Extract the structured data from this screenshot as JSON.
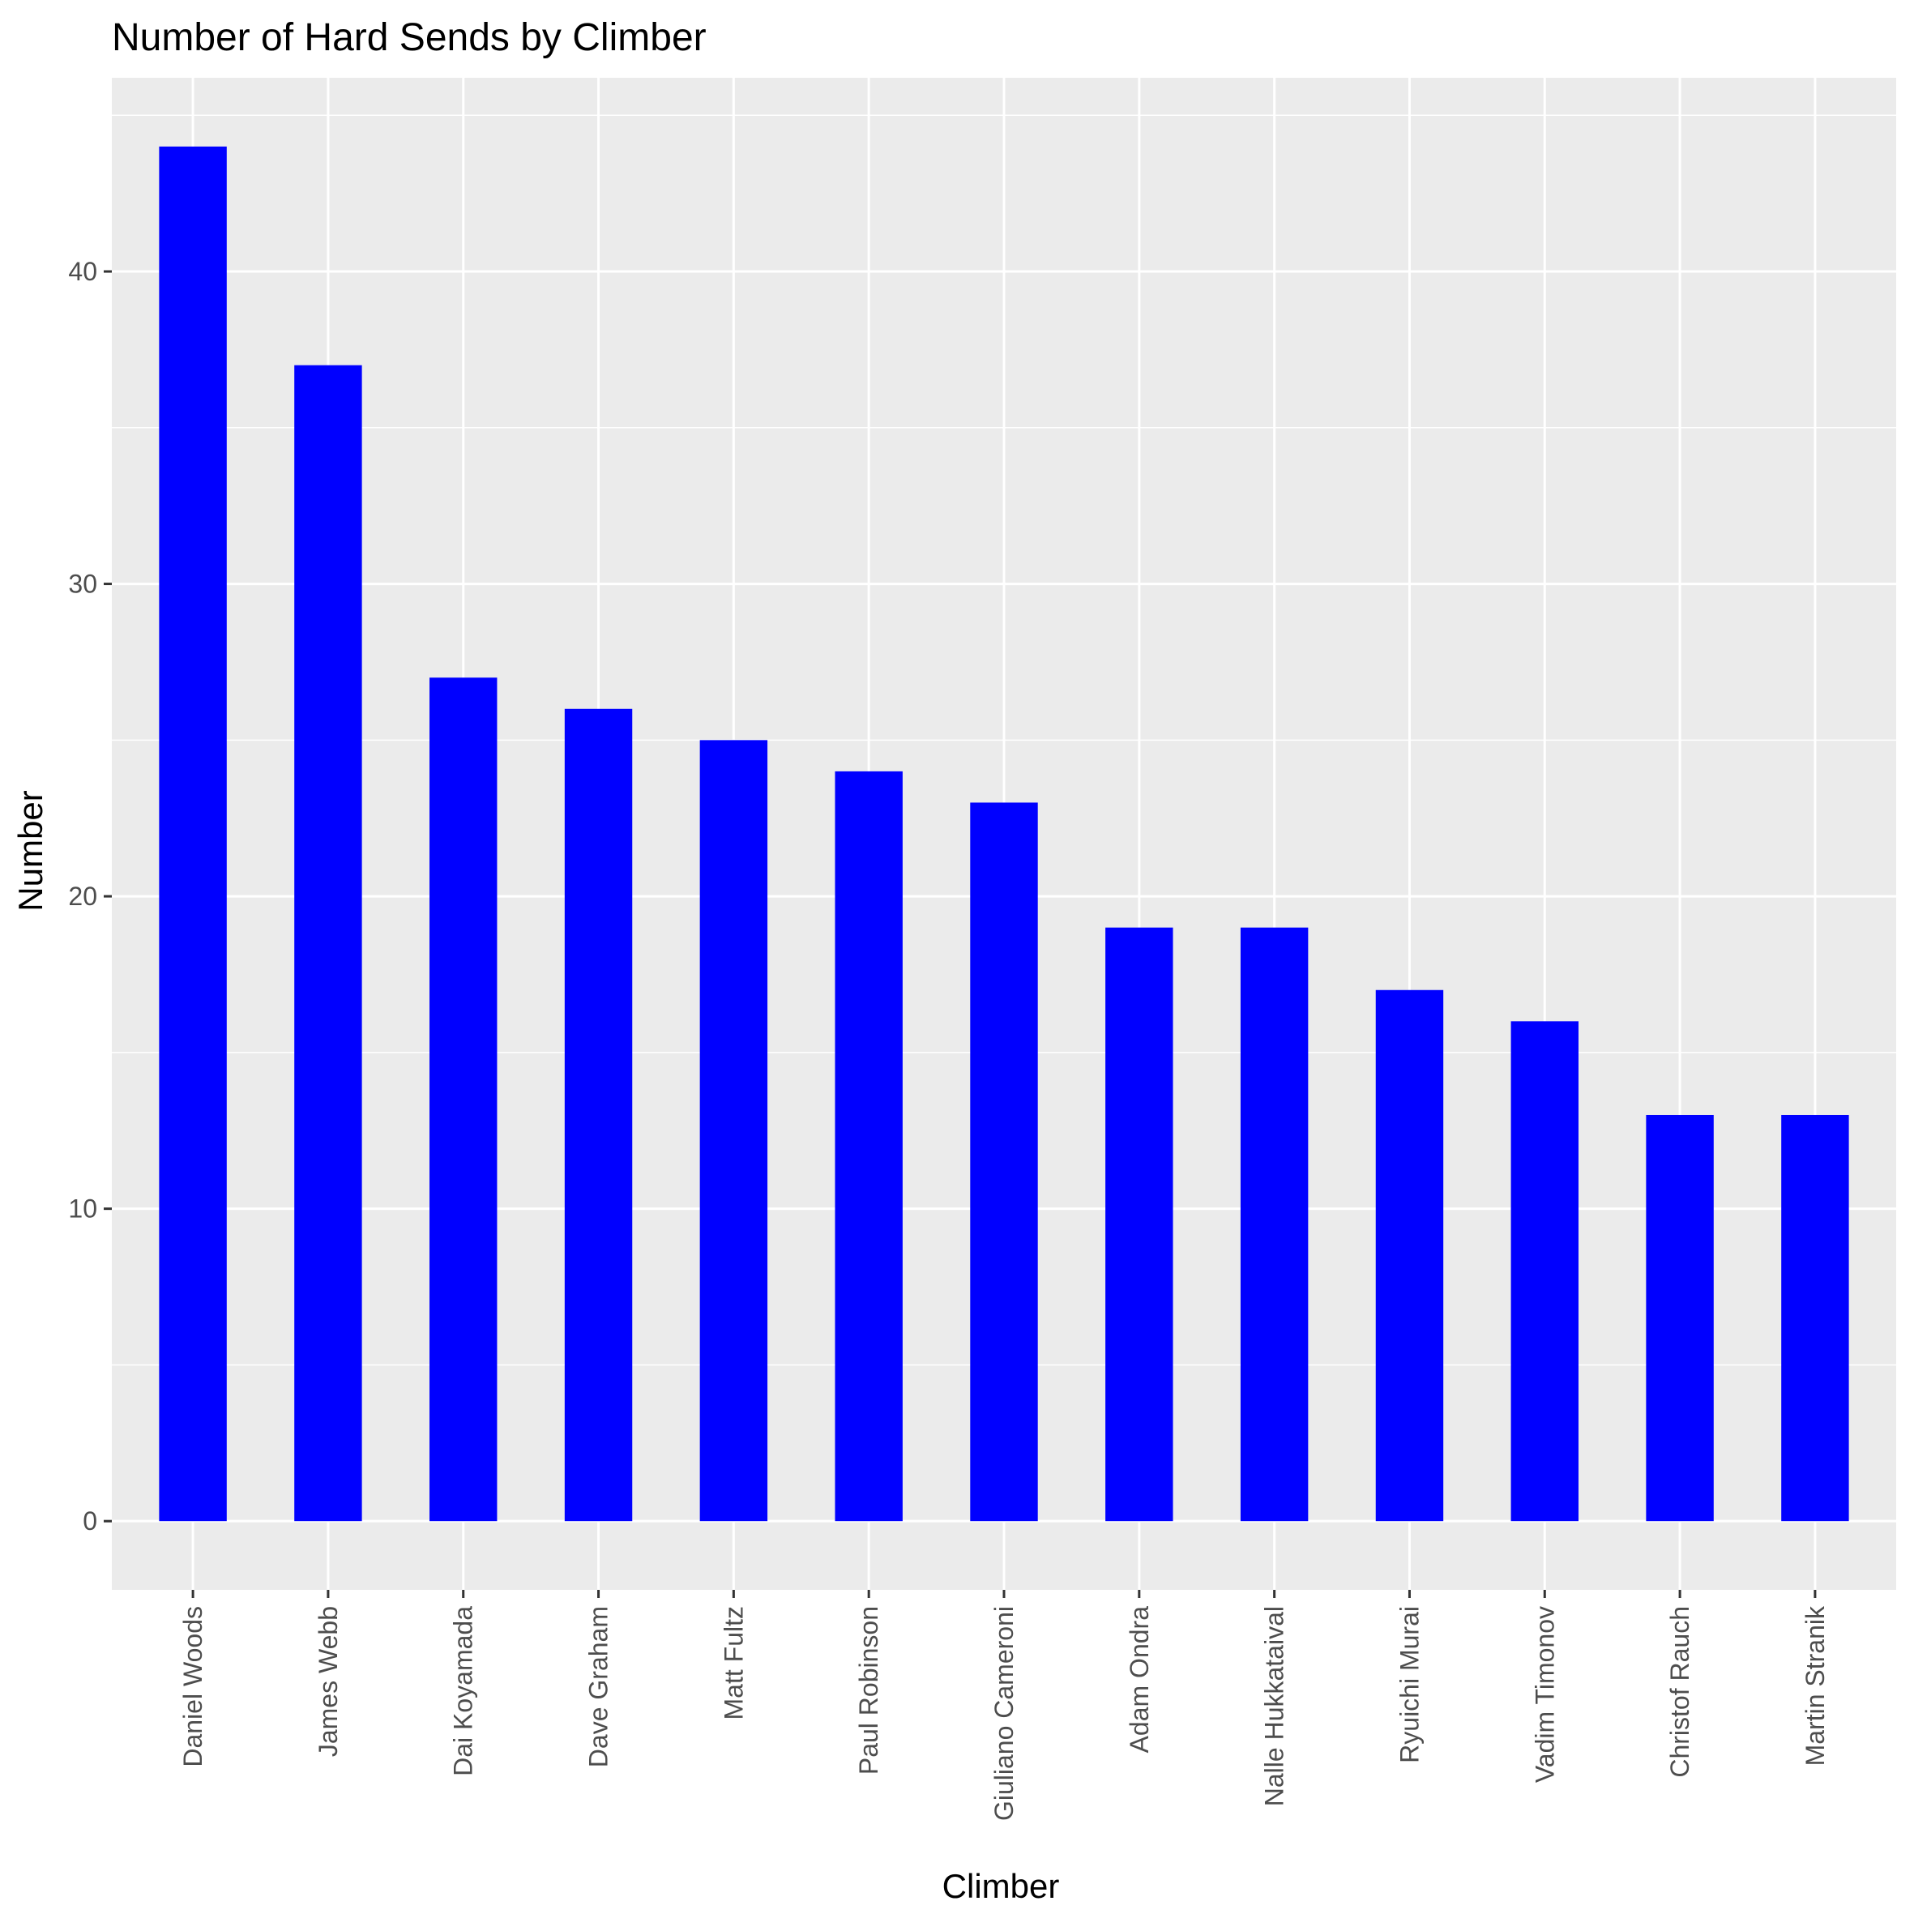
{
  "chart_data": {
    "type": "bar",
    "title": "Number of Hard Sends by Climber",
    "xlabel": "Climber",
    "ylabel": "Number",
    "categories": [
      "Daniel Woods",
      "James Webb",
      "Dai Koyamada",
      "Dave Graham",
      "Matt Fultz",
      "Paul Robinson",
      "Giuliano Cameroni",
      "Adam Ondra",
      "Nalle Hukkataival",
      "Ryuichi Murai",
      "Vadim Timonov",
      "Christof Rauch",
      "Martin Stranik"
    ],
    "values": [
      44,
      37,
      27,
      26,
      25,
      24,
      23,
      19,
      19,
      17,
      16,
      13,
      13
    ],
    "ylim": [
      -2.2,
      46.2
    ],
    "yticks": [
      0,
      10,
      20,
      30,
      40
    ],
    "grid": true,
    "bar_color": "#0000ff",
    "panel_color": "#ebebeb",
    "grid_color": "#ffffff"
  }
}
